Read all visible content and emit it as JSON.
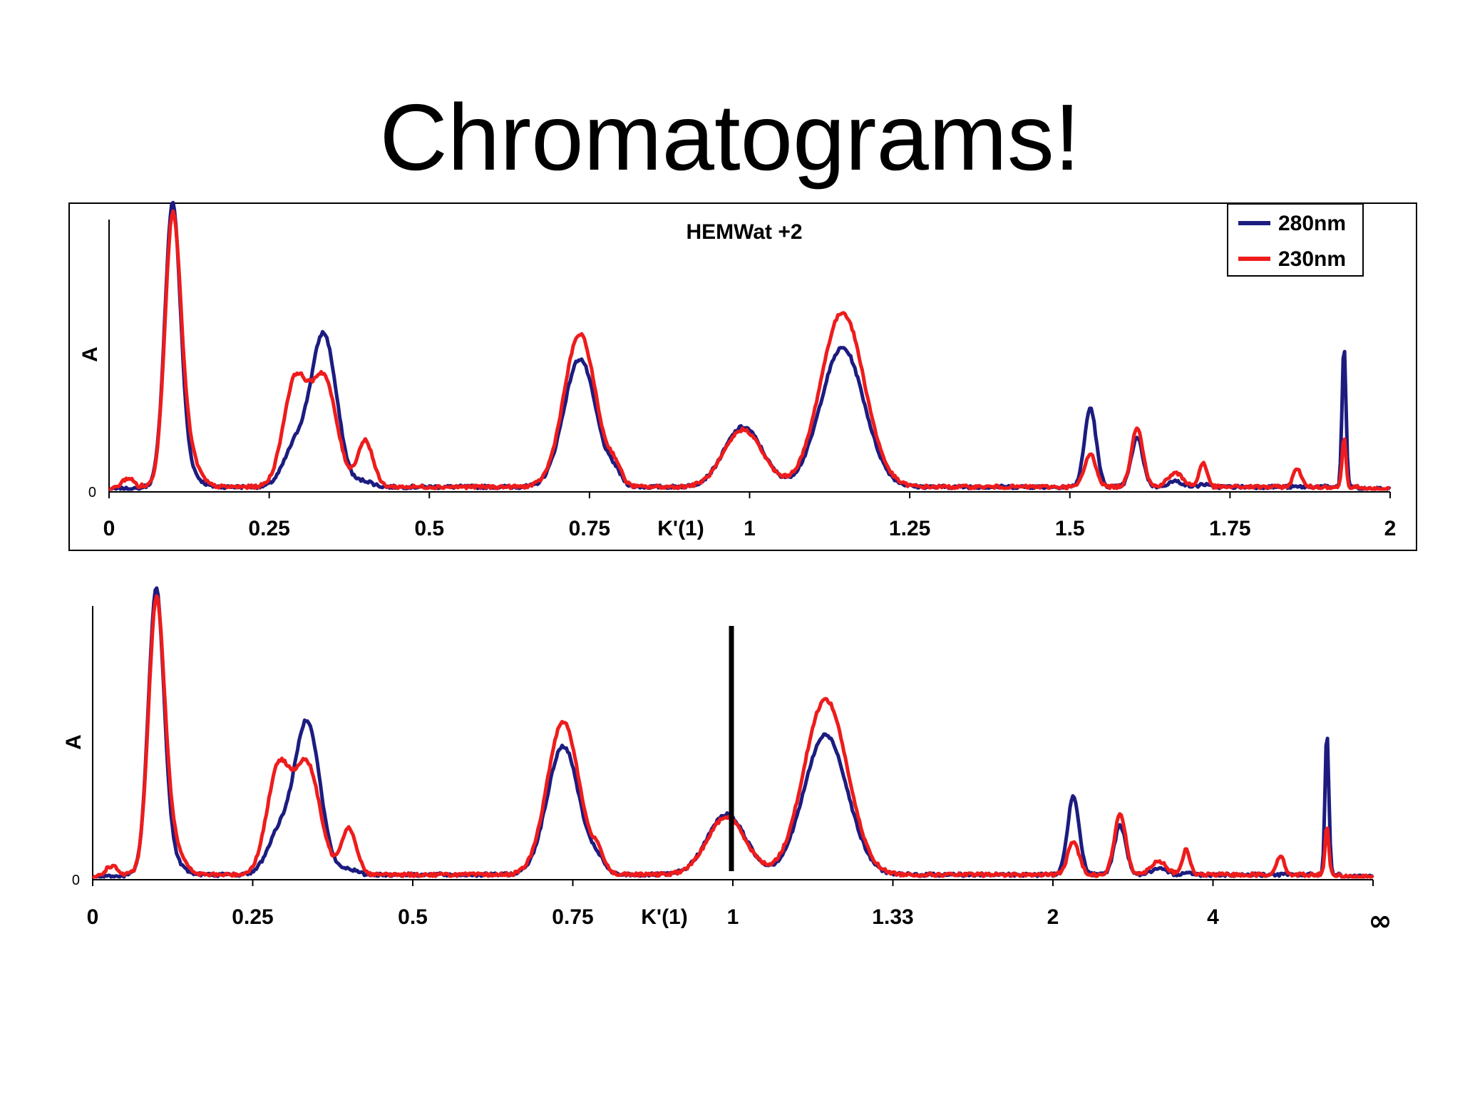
{
  "slide": {
    "title": "Chromatograms!"
  },
  "colors": {
    "s280": "#1c1c80",
    "s230": "#ee1c1c",
    "axis": "#000000"
  },
  "peaks": [
    {
      "c": 0.03,
      "h280": 0.0,
      "h230": 0.04,
      "w": 0.01
    },
    {
      "c": 0.099,
      "h280": 0.99,
      "h230": 0.89,
      "w": 0.012
    },
    {
      "c": 0.115,
      "h280": 0.08,
      "h230": 0.18,
      "w": 0.018
    },
    {
      "c": 0.29,
      "h280": 0.14,
      "h230": 0.38,
      "w": 0.018
    },
    {
      "c": 0.335,
      "h280": 0.56,
      "h230": 0.4,
      "w": 0.02
    },
    {
      "c": 0.4,
      "h280": 0.02,
      "h230": 0.17,
      "w": 0.012
    },
    {
      "c": 0.735,
      "h280": 0.47,
      "h230": 0.56,
      "w": 0.025
    },
    {
      "c": 0.79,
      "h280": 0.04,
      "h230": 0.06,
      "w": 0.01
    },
    {
      "c": 0.99,
      "h280": 0.22,
      "h230": 0.21,
      "w": 0.03
    },
    {
      "c": 1.145,
      "h280": 0.51,
      "h230": 0.64,
      "w": 0.034
    },
    {
      "c": 1.532,
      "h280": 0.29,
      "h230": 0.12,
      "w": 0.009
    },
    {
      "c": 1.605,
      "h280": 0.18,
      "h230": 0.22,
      "w": 0.009
    },
    {
      "c": 1.665,
      "h280": 0.02,
      "h230": 0.05,
      "w": 0.012
    },
    {
      "c": 1.708,
      "h280": 0.01,
      "h230": 0.09,
      "w": 0.006
    },
    {
      "c": 1.855,
      "h280": 0.0,
      "h230": 0.07,
      "w": 0.006
    },
    {
      "c": 1.928,
      "h280": 0.52,
      "h230": 0.18,
      "w": 0.003
    }
  ],
  "chart_data": [
    {
      "type": "line",
      "title": "HEMWat +2",
      "xlabel": "K'(1)",
      "ylabel": "A",
      "xlim": [
        0,
        2
      ],
      "x_ticks": [
        0,
        0.25,
        0.5,
        0.75,
        1,
        1.25,
        1.5,
        1.75,
        2
      ],
      "x_tick_labels": [
        "0",
        "0.25",
        "0.5",
        "0.75",
        "1",
        "1.25",
        "1.5",
        "1.75",
        "2"
      ],
      "y_ticks": [
        0
      ],
      "y_tick_labels": [
        "0"
      ],
      "legend": {
        "placement": "top-right",
        "entries": [
          "280nm",
          "230nm"
        ]
      },
      "series": [
        {
          "name": "280nm",
          "note": "summed from peaks[].h280"
        },
        {
          "name": "230nm",
          "note": "summed from peaks[].h230"
        }
      ]
    },
    {
      "type": "line",
      "xlabel": "K'(1)",
      "ylabel": "A",
      "x_ticks": [
        0,
        0.25,
        0.5,
        0.75,
        1,
        1.33,
        2,
        4,
        "∞"
      ],
      "x_tick_labels": [
        "0",
        "0.25",
        "0.5",
        "0.75",
        "1",
        "1.33",
        "2",
        "4",
        "∞"
      ],
      "y_ticks": [
        0
      ],
      "y_tick_labels": [
        "0"
      ],
      "marker_line": {
        "x": 1
      },
      "series": [
        {
          "name": "280nm"
        },
        {
          "name": "230nm"
        }
      ]
    }
  ]
}
